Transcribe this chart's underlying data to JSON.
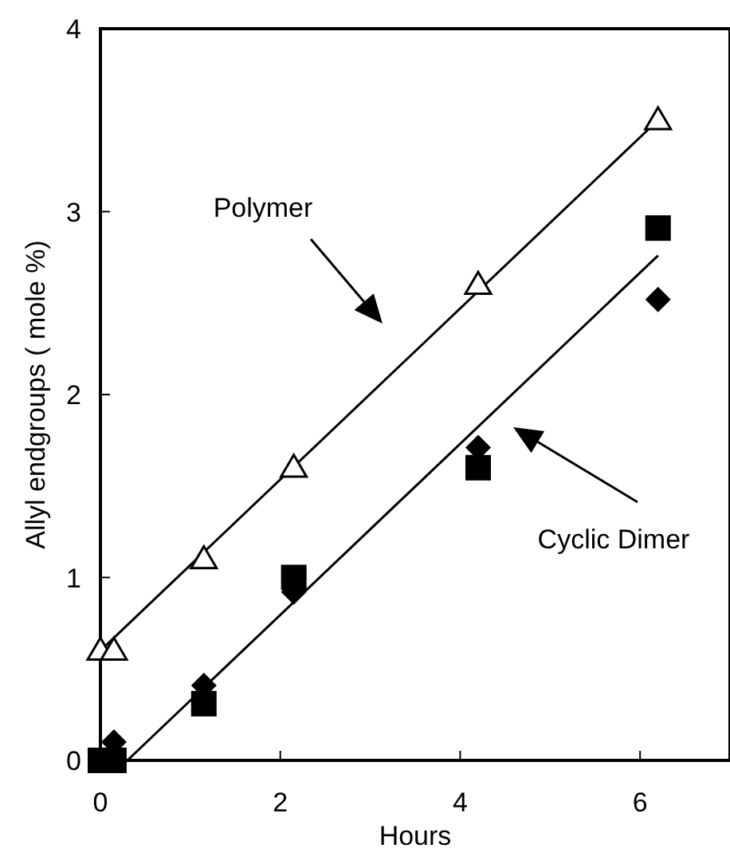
{
  "chart_data": {
    "type": "scatter",
    "xlabel": "Hours",
    "ylabel": "Allyl endgroups ( mole %)",
    "xlim": [
      0,
      7
    ],
    "ylim": [
      0,
      4
    ],
    "xticks": [
      0,
      2,
      4,
      6
    ],
    "yticks": [
      0,
      1,
      2,
      3,
      4
    ],
    "grid": false,
    "series": [
      {
        "color": "#000000",
        "marker": "triangle",
        "x": [
          0,
          0.15,
          1.15,
          2.15,
          4.2,
          6.2
        ],
        "values": [
          0.6,
          0.6,
          1.1,
          1.6,
          2.6,
          3.5
        ]
      },
      {
        "color": "#000000",
        "marker": "square",
        "x": [
          0,
          0.15,
          1.15,
          2.15,
          4.2,
          6.2
        ],
        "values": [
          0,
          0,
          0.31,
          1.0,
          1.6,
          2.91
        ]
      },
      {
        "color": "#000000",
        "marker": "diamond",
        "x": [
          0.15,
          1.15,
          2.15,
          4.2,
          6.2
        ],
        "values": [
          0.1,
          0.41,
          0.92,
          1.71,
          2.52
        ]
      },
      {
        "type": "line",
        "color": "#000000",
        "marker": "none",
        "x": [
          0,
          6.2
        ],
        "values": [
          0.6,
          3.5
        ]
      },
      {
        "type": "line",
        "color": "#000000",
        "marker": "none",
        "x": [
          0.3,
          6.2
        ],
        "values": [
          0,
          2.76
        ]
      }
    ],
    "annotations": [
      "Polymer",
      "Cyclic Dimer"
    ]
  }
}
